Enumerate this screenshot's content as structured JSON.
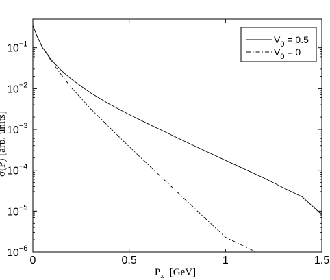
{
  "chart_data": {
    "type": "line",
    "title": "",
    "xlabel": "P",
    "xlabel_sub": "x",
    "xlabel_unit": "[GeV]",
    "ylabel_partial": "σ(P",
    "ylabel_unit_partial": ") [arb. units]",
    "xlim": [
      0,
      1.5
    ],
    "ylim": [
      1e-06,
      0.5
    ],
    "y_scale": "log",
    "grid": false,
    "legend_position": "top-right",
    "x_ticks": [
      {
        "value": 0,
        "label": "0"
      },
      {
        "value": 0.5,
        "label": "0.5"
      },
      {
        "value": 1,
        "label": "1"
      },
      {
        "value": 1.5,
        "label": "1.5"
      }
    ],
    "y_ticks": [
      {
        "exp": -6,
        "base": "10",
        "sup": "−6"
      },
      {
        "exp": -5,
        "base": "10",
        "sup": "−5"
      },
      {
        "exp": -4,
        "base": "10",
        "sup": "−4"
      },
      {
        "exp": -3,
        "base": "10",
        "sup": "−3"
      },
      {
        "exp": -2,
        "base": "10",
        "sup": "−2"
      },
      {
        "exp": -1,
        "base": "10",
        "sup": "−1"
      }
    ],
    "series": [
      {
        "name": "V0 = 0.5",
        "legend_main": "V",
        "legend_sub": "0",
        "legend_rest": " = 0.5",
        "style": "solid",
        "x": [
          0,
          0.02,
          0.05,
          0.08,
          0.1,
          0.15,
          0.2,
          0.3,
          0.4,
          0.5,
          0.6,
          0.7,
          0.8,
          0.9,
          1.0,
          1.1,
          1.2,
          1.3,
          1.4,
          1.5
        ],
        "y": [
          0.35,
          0.2,
          0.1,
          0.065,
          0.048,
          0.027,
          0.017,
          0.0078,
          0.0041,
          0.0023,
          0.00135,
          0.00081,
          0.00048,
          0.00029,
          0.000175,
          0.000106,
          6.45e-05,
          3.75e-05,
          2.2e-05,
          8.2e-06
        ]
      },
      {
        "name": "V0 = 0",
        "legend_main": "V",
        "legend_sub": "0",
        "legend_rest": " = 0",
        "style": "dashdot",
        "x": [
          0,
          0.02,
          0.05,
          0.08,
          0.1,
          0.15,
          0.2,
          0.3,
          0.4,
          0.5,
          0.6,
          0.7,
          0.8,
          0.9,
          1.0,
          1.1,
          1.16
        ],
        "y": [
          0.35,
          0.2,
          0.1,
          0.062,
          0.044,
          0.021,
          0.0105,
          0.0032,
          0.0011,
          0.00038,
          0.000135,
          4.85e-05,
          1.75e-05,
          6.3e-06,
          2.3e-06,
          1.35e-06,
          1e-06
        ]
      }
    ]
  }
}
